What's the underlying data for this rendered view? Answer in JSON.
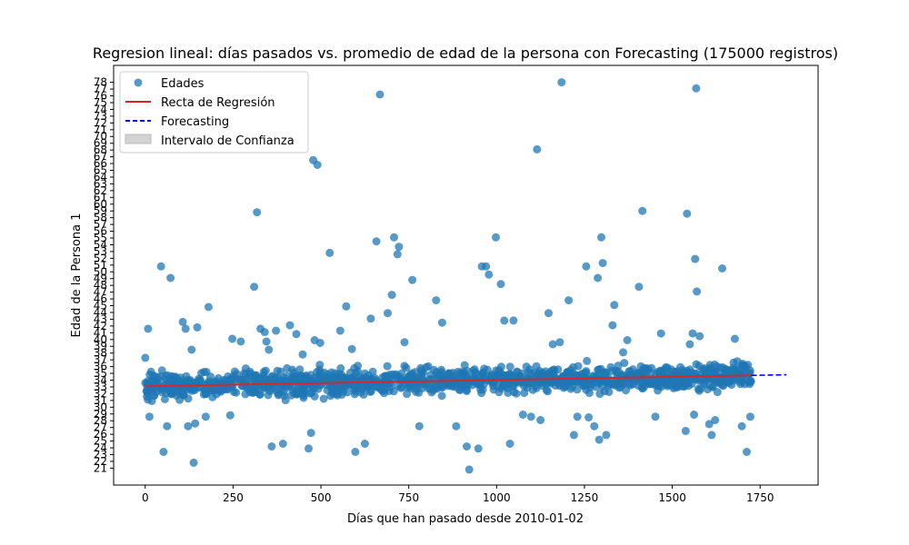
{
  "chart_data": {
    "type": "scatter",
    "title": "Regresion lineal: días pasados vs. promedio de edad de la persona con Forecasting (175000 registros)",
    "xlabel": "Días que han pasado desde 2010-01-02",
    "ylabel": "Edad de la Persona 1",
    "xlim": [
      -90,
      1915
    ],
    "ylim": [
      18.5,
      80.5
    ],
    "x_ticks": [
      0,
      250,
      500,
      750,
      1000,
      1250,
      1500,
      1750
    ],
    "y_ticks": [
      21,
      22,
      23,
      24,
      25,
      26,
      27,
      28,
      29,
      30,
      31,
      32,
      33,
      34,
      35,
      36,
      37,
      38,
      39,
      40,
      41,
      42,
      43,
      44,
      45,
      46,
      47,
      48,
      49,
      50,
      51,
      52,
      53,
      54,
      55,
      56,
      57,
      58,
      59,
      60,
      61,
      62,
      63,
      64,
      65,
      66,
      67,
      68,
      69,
      70,
      71,
      72,
      73,
      74,
      75,
      76,
      77,
      78
    ],
    "grid": false,
    "legend": {
      "placement": "top-left",
      "entries": [
        "Edades",
        "Recta de Regresión",
        "Forecasting",
        "Intervalo de Confianza"
      ]
    },
    "colors": {
      "points": "#1f77b4",
      "regression": "#d62728",
      "forecast": "#0000ff",
      "confidence": "#d3d3d3"
    },
    "series": [
      {
        "name": "Edades",
        "kind": "scatter",
        "points": [
          [
            0,
            37.3
          ],
          [
            8,
            41.6
          ],
          [
            12,
            28.6
          ],
          [
            45,
            50.8
          ],
          [
            52,
            23.4
          ],
          [
            62,
            27.2
          ],
          [
            72,
            49.1
          ],
          [
            107,
            42.6
          ],
          [
            115,
            41.6
          ],
          [
            122,
            27.2
          ],
          [
            132,
            38.5
          ],
          [
            138,
            21.8
          ],
          [
            142,
            27.6
          ],
          [
            148,
            41.8
          ],
          [
            172,
            28.6
          ],
          [
            180,
            44.8
          ],
          [
            242,
            28.8
          ],
          [
            248,
            40.1
          ],
          [
            272,
            39.7
          ],
          [
            310,
            47.8
          ],
          [
            318,
            58.8
          ],
          [
            328,
            41.6
          ],
          [
            340,
            41.1
          ],
          [
            345,
            39.7
          ],
          [
            352,
            38.5
          ],
          [
            360,
            24.2
          ],
          [
            372,
            41.3
          ],
          [
            392,
            24.6
          ],
          [
            412,
            42.1
          ],
          [
            430,
            40.8
          ],
          [
            448,
            37.8
          ],
          [
            465,
            23.9
          ],
          [
            472,
            26.2
          ],
          [
            478,
            66.5
          ],
          [
            482,
            39.9
          ],
          [
            490,
            65.8
          ],
          [
            498,
            39.5
          ],
          [
            525,
            52.8
          ],
          [
            555,
            41.3
          ],
          [
            572,
            44.9
          ],
          [
            588,
            38.6
          ],
          [
            598,
            23.4
          ],
          [
            625,
            24.6
          ],
          [
            642,
            43.1
          ],
          [
            658,
            54.5
          ],
          [
            668,
            76.2
          ],
          [
            690,
            43.9
          ],
          [
            702,
            46.6
          ],
          [
            708,
            55.1
          ],
          [
            718,
            52.6
          ],
          [
            722,
            53.7
          ],
          [
            738,
            39.6
          ],
          [
            760,
            48.8
          ],
          [
            780,
            27.2
          ],
          [
            828,
            45.8
          ],
          [
            845,
            42.5
          ],
          [
            885,
            27.2
          ],
          [
            915,
            24.2
          ],
          [
            922,
            20.8
          ],
          [
            948,
            23.9
          ],
          [
            958,
            50.8
          ],
          [
            970,
            50.8
          ],
          [
            978,
            49.6
          ],
          [
            998,
            55.1
          ],
          [
            1012,
            48.2
          ],
          [
            1022,
            42.8
          ],
          [
            1038,
            24.6
          ],
          [
            1048,
            42.8
          ],
          [
            1075,
            28.9
          ],
          [
            1098,
            28.6
          ],
          [
            1115,
            68.1
          ],
          [
            1125,
            28.1
          ],
          [
            1148,
            43.9
          ],
          [
            1160,
            39.3
          ],
          [
            1180,
            39.6
          ],
          [
            1185,
            78.0
          ],
          [
            1205,
            45.8
          ],
          [
            1220,
            25.9
          ],
          [
            1230,
            28.6
          ],
          [
            1255,
            50.8
          ],
          [
            1262,
            28.5
          ],
          [
            1278,
            27.2
          ],
          [
            1288,
            49.1
          ],
          [
            1292,
            25.2
          ],
          [
            1298,
            55.1
          ],
          [
            1302,
            51.3
          ],
          [
            1312,
            25.9
          ],
          [
            1330,
            42.1
          ],
          [
            1335,
            45.1
          ],
          [
            1360,
            38.1
          ],
          [
            1372,
            39.9
          ],
          [
            1405,
            47.8
          ],
          [
            1415,
            59.0
          ],
          [
            1452,
            28.6
          ],
          [
            1468,
            40.9
          ],
          [
            1538,
            26.5
          ],
          [
            1542,
            58.6
          ],
          [
            1550,
            39.3
          ],
          [
            1558,
            40.9
          ],
          [
            1562,
            28.9
          ],
          [
            1565,
            51.9
          ],
          [
            1568,
            77.1
          ],
          [
            1570,
            47.1
          ],
          [
            1578,
            40.5
          ],
          [
            1605,
            27.5
          ],
          [
            1612,
            25.9
          ],
          [
            1622,
            28.1
          ],
          [
            1642,
            50.5
          ],
          [
            1678,
            40.1
          ],
          [
            1698,
            27.2
          ],
          [
            1712,
            23.4
          ],
          [
            1722,
            28.6
          ]
        ]
      },
      {
        "name": "Recta de Regresión",
        "kind": "line",
        "points": [
          [
            0,
            33.1
          ],
          [
            1725,
            34.7
          ]
        ]
      },
      {
        "name": "Forecasting",
        "kind": "dashed-line",
        "points": [
          [
            1725,
            34.7
          ],
          [
            1825,
            34.8
          ]
        ]
      }
    ],
    "dense_band": {
      "description_values": "Many additional scatter points cluster around ages 30-36 across days 0-1725",
      "x_range": [
        0,
        1725
      ],
      "y_range": [
        29.5,
        36.5
      ],
      "count": 1300
    }
  }
}
